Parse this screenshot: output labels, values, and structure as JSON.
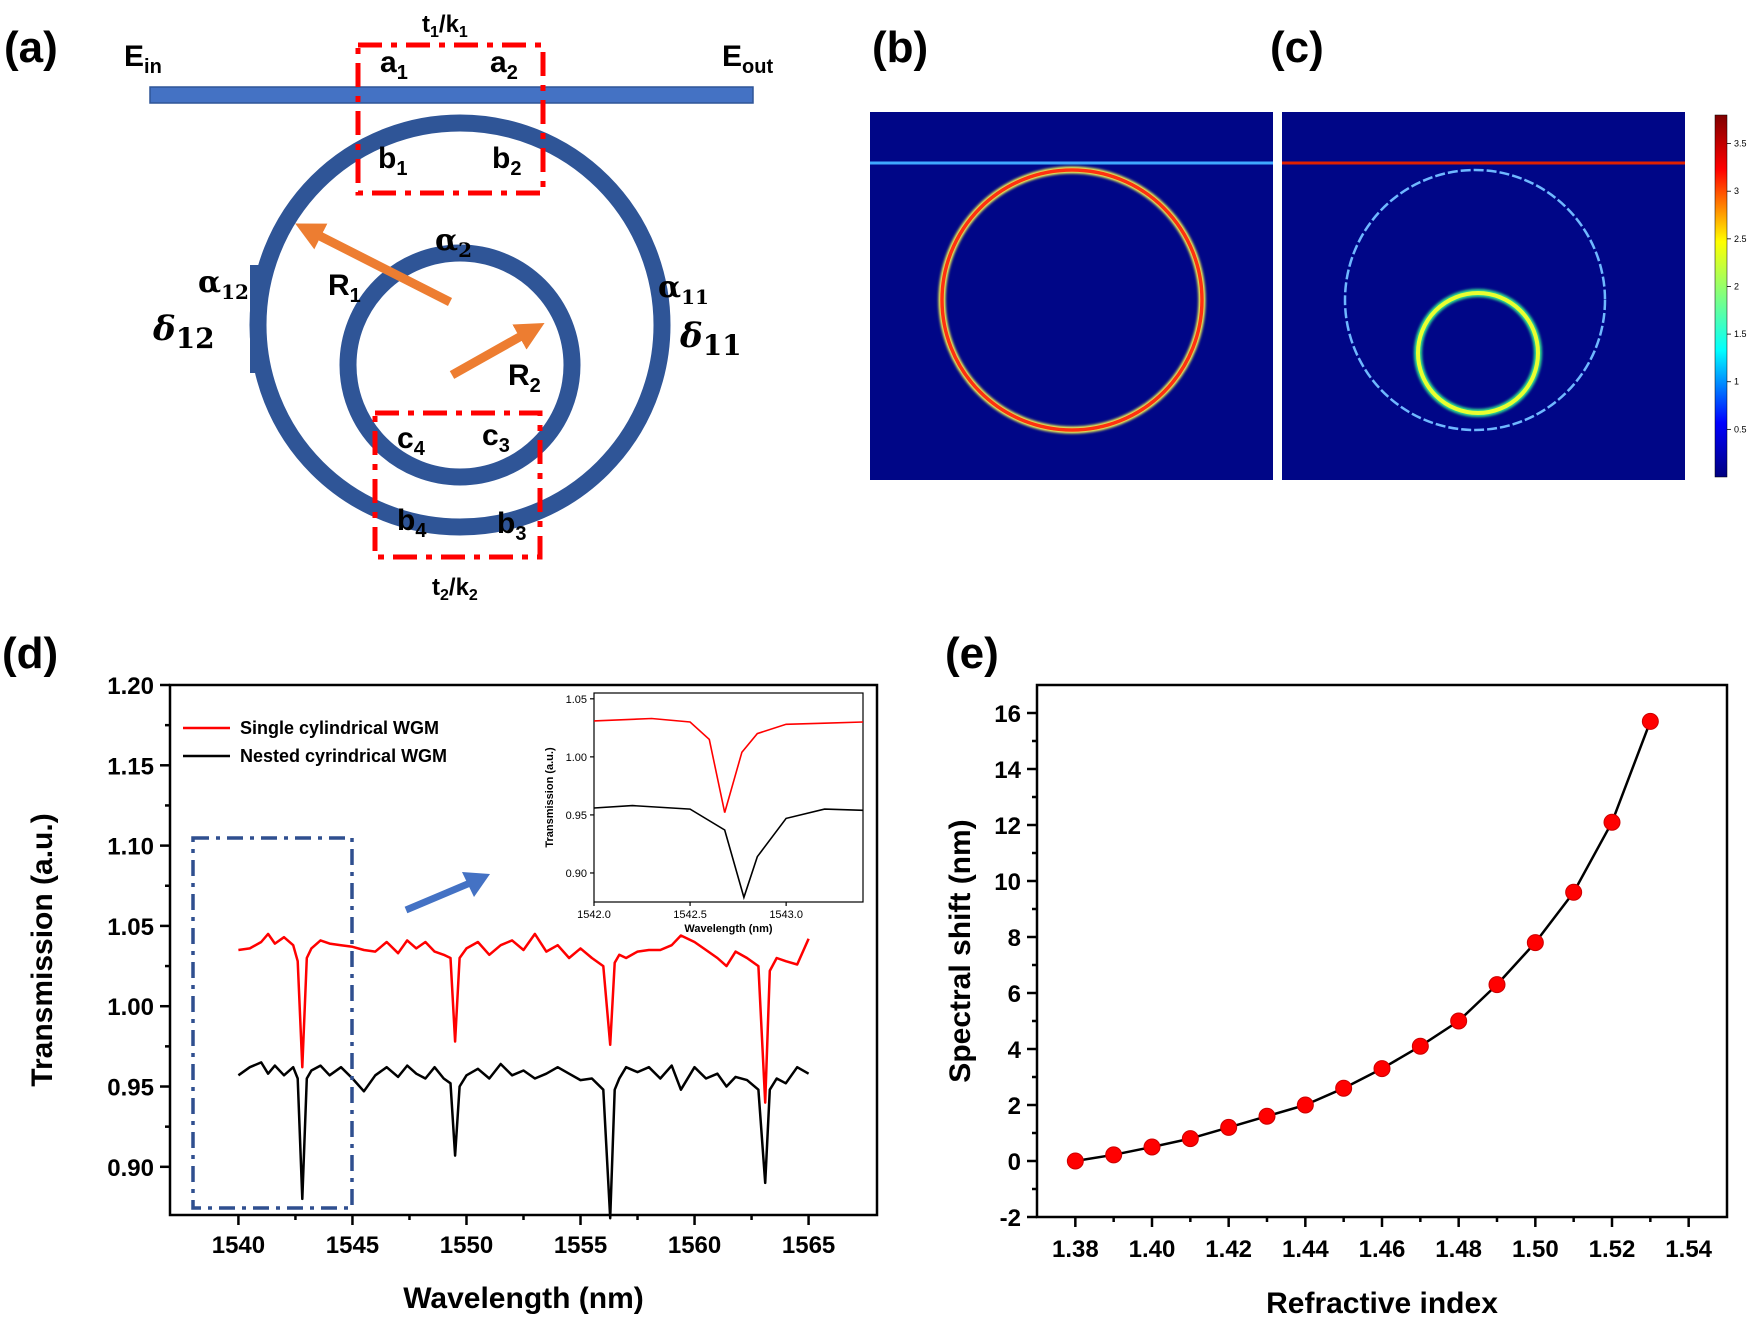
{
  "panels": {
    "a": "(a)",
    "b": "(b)",
    "c": "(c)",
    "d": "(d)",
    "e": "(e)"
  },
  "diagram": {
    "e_in": "E",
    "e_in_sub": "in",
    "e_out": "E",
    "e_out_sub": "out",
    "t1k1": "t",
    "t1k1_sub1": "1",
    "t1k1_mid": "/k",
    "t1k1_sub2": "1",
    "t2k2": "t",
    "t2k2_sub1": "2",
    "t2k2_mid": "/k",
    "t2k2_sub2": "2",
    "a1": "a",
    "a1_sub": "1",
    "a2": "a",
    "a2_sub": "2",
    "b1": "b",
    "b1_sub": "1",
    "b2": "b",
    "b2_sub": "2",
    "b3": "b",
    "b3_sub": "3",
    "b4": "b",
    "b4_sub": "4",
    "c3": "c",
    "c3_sub": "3",
    "c4": "c",
    "c4_sub": "4",
    "alpha2": "α",
    "alpha2_sub": "2",
    "alpha11": "α",
    "alpha11_sub": "11",
    "alpha12": "α",
    "alpha12_sub": "12",
    "delta11": "δ",
    "delta11_sub": "11",
    "delta12": "δ",
    "delta12_sub": "12",
    "r1": "R",
    "r1_sub": "1",
    "r2": "R",
    "r2_sub": "2",
    "colors": {
      "waveguide": "#4472c4",
      "ring": "#2f5597",
      "arrow": "#ed7d31",
      "box": "#ff0000"
    }
  },
  "field_maps": {
    "colorbar_ticks": [
      "3.5",
      "3",
      "2.5",
      "2",
      "1.5",
      "1",
      "0.5"
    ],
    "colorbar_values": [
      3.5,
      3,
      2.5,
      2,
      1.5,
      1,
      0.5
    ],
    "colorbar_range": [
      0,
      3.8
    ],
    "background": "#00007a"
  },
  "chart_data": [
    {
      "panel": "d",
      "type": "line",
      "xlabel": "Wavelength (nm)",
      "ylabel": "Transmission (a.u.)",
      "xlim": [
        1537,
        1568
      ],
      "ylim": [
        0.87,
        1.2
      ],
      "xticks": [
        1540,
        1545,
        1550,
        1555,
        1560,
        1565
      ],
      "yticks": [
        0.9,
        0.95,
        1.0,
        1.05,
        1.1,
        1.15,
        1.2
      ],
      "xtick_labels": [
        "1540",
        "1545",
        "1550",
        "1555",
        "1560",
        "1565"
      ],
      "ytick_labels": [
        "0.90",
        "0.95",
        "1.00",
        "1.05",
        "1.10",
        "1.15",
        "1.20"
      ],
      "legend_position": "top-left",
      "series": [
        {
          "name": "Single cylindrical WGM",
          "color": "#ff0000",
          "x": [
            1540,
            1540.5,
            1541,
            1541.3,
            1541.6,
            1542,
            1542.4,
            1542.6,
            1542.8,
            1543,
            1543.2,
            1543.6,
            1544,
            1544.5,
            1545,
            1545.5,
            1546,
            1546.5,
            1547,
            1547.4,
            1547.8,
            1548.2,
            1548.6,
            1549,
            1549.3,
            1549.5,
            1549.7,
            1550,
            1550.5,
            1551,
            1551.5,
            1552,
            1552.5,
            1553,
            1553.5,
            1554,
            1554.5,
            1555,
            1555.5,
            1556,
            1556.3,
            1556.5,
            1556.7,
            1557,
            1557.5,
            1558,
            1558.5,
            1559,
            1559.4,
            1560,
            1560.5,
            1561,
            1561.4,
            1561.8,
            1562.3,
            1562.8,
            1563.1,
            1563.3,
            1563.6,
            1564,
            1564.5,
            1565
          ],
          "y": [
            1.035,
            1.036,
            1.04,
            1.045,
            1.039,
            1.043,
            1.038,
            1.028,
            0.962,
            1.03,
            1.036,
            1.041,
            1.039,
            1.038,
            1.037,
            1.035,
            1.034,
            1.04,
            1.033,
            1.041,
            1.036,
            1.04,
            1.034,
            1.032,
            1.03,
            0.978,
            1.03,
            1.036,
            1.04,
            1.032,
            1.038,
            1.041,
            1.035,
            1.045,
            1.034,
            1.038,
            1.03,
            1.036,
            1.03,
            1.025,
            0.976,
            1.027,
            1.032,
            1.03,
            1.034,
            1.035,
            1.035,
            1.038,
            1.044,
            1.04,
            1.035,
            1.03,
            1.025,
            1.034,
            1.03,
            1.025,
            0.94,
            1.022,
            1.03,
            1.028,
            1.026,
            1.042
          ]
        },
        {
          "name": "Nested cyrindrical WGM",
          "color": "#000000",
          "x": [
            1540,
            1540.5,
            1541,
            1541.3,
            1541.6,
            1542,
            1542.4,
            1542.6,
            1542.8,
            1543,
            1543.2,
            1543.6,
            1544,
            1544.5,
            1545,
            1545.5,
            1546,
            1546.5,
            1547,
            1547.4,
            1547.8,
            1548.2,
            1548.6,
            1549,
            1549.3,
            1549.5,
            1549.7,
            1550,
            1550.5,
            1551,
            1551.5,
            1552,
            1552.5,
            1553,
            1553.5,
            1554,
            1554.5,
            1555,
            1555.5,
            1556,
            1556.3,
            1556.5,
            1556.7,
            1557,
            1557.5,
            1558,
            1558.5,
            1559,
            1559.4,
            1560,
            1560.5,
            1561,
            1561.4,
            1561.8,
            1562.3,
            1562.8,
            1563.1,
            1563.3,
            1563.6,
            1564,
            1564.5,
            1565
          ],
          "y": [
            0.957,
            0.962,
            0.965,
            0.958,
            0.963,
            0.957,
            0.962,
            0.955,
            0.88,
            0.955,
            0.96,
            0.963,
            0.957,
            0.962,
            0.955,
            0.947,
            0.957,
            0.962,
            0.956,
            0.963,
            0.958,
            0.955,
            0.962,
            0.955,
            0.952,
            0.907,
            0.95,
            0.957,
            0.961,
            0.955,
            0.964,
            0.957,
            0.96,
            0.955,
            0.958,
            0.962,
            0.958,
            0.954,
            0.955,
            0.948,
            0.868,
            0.948,
            0.955,
            0.962,
            0.959,
            0.962,
            0.955,
            0.963,
            0.948,
            0.962,
            0.955,
            0.958,
            0.95,
            0.956,
            0.954,
            0.948,
            0.89,
            0.948,
            0.955,
            0.952,
            0.962,
            0.958
          ]
        }
      ],
      "inset": {
        "xlabel": "Wavelength (nm)",
        "ylabel": "Transmission (a.u.)",
        "xlim": [
          1542.0,
          1543.4
        ],
        "ylim": [
          0.875,
          1.055
        ],
        "xticks": [
          1542.0,
          1542.5,
          1543.0
        ],
        "yticks": [
          0.9,
          0.95,
          1.0,
          1.05
        ],
        "xtick_labels": [
          "1542.0",
          "1542.5",
          "1543.0"
        ],
        "ytick_labels": [
          "0.90",
          "0.95",
          "1.00",
          "1.05"
        ],
        "series": [
          {
            "name": "Single cylindrical WGM",
            "color": "#ff0000",
            "x": [
              1542.0,
              1542.3,
              1542.5,
              1542.6,
              1542.68,
              1542.77,
              1542.85,
              1543.0,
              1543.2,
              1543.4
            ],
            "y": [
              1.031,
              1.033,
              1.03,
              1.015,
              0.952,
              1.004,
              1.02,
              1.028,
              1.029,
              1.03
            ]
          },
          {
            "name": "Nested cyrindrical WGM",
            "color": "#000000",
            "x": [
              1542.0,
              1542.2,
              1542.5,
              1542.68,
              1542.78,
              1542.85,
              1543.0,
              1543.2,
              1543.4
            ],
            "y": [
              0.956,
              0.958,
              0.955,
              0.937,
              0.879,
              0.914,
              0.947,
              0.955,
              0.954
            ]
          }
        ]
      }
    },
    {
      "panel": "e",
      "type": "scatter",
      "xlabel": "Refractive index",
      "ylabel": "Spectral shift (nm)",
      "xlim": [
        1.37,
        1.55
      ],
      "ylim": [
        -2,
        17
      ],
      "xticks": [
        1.38,
        1.4,
        1.42,
        1.44,
        1.46,
        1.48,
        1.5,
        1.52,
        1.54
      ],
      "yticks": [
        -2,
        0,
        2,
        4,
        6,
        8,
        10,
        12,
        14,
        16
      ],
      "xtick_labels": [
        "1.38",
        "1.40",
        "1.42",
        "1.44",
        "1.46",
        "1.48",
        "1.50",
        "1.52",
        "1.54"
      ],
      "ytick_labels": [
        "-2",
        "0",
        "2",
        "4",
        "6",
        "8",
        "10",
        "12",
        "14",
        "16"
      ],
      "marker_color": "#ff0000",
      "line_color": "#000000",
      "x": [
        1.38,
        1.39,
        1.4,
        1.41,
        1.42,
        1.43,
        1.44,
        1.45,
        1.46,
        1.47,
        1.48,
        1.49,
        1.5,
        1.51,
        1.52,
        1.53
      ],
      "y": [
        0.0,
        0.22,
        0.5,
        0.8,
        1.2,
        1.6,
        2.0,
        2.6,
        3.3,
        4.1,
        5.0,
        6.3,
        7.8,
        9.6,
        12.1,
        15.7
      ]
    }
  ]
}
